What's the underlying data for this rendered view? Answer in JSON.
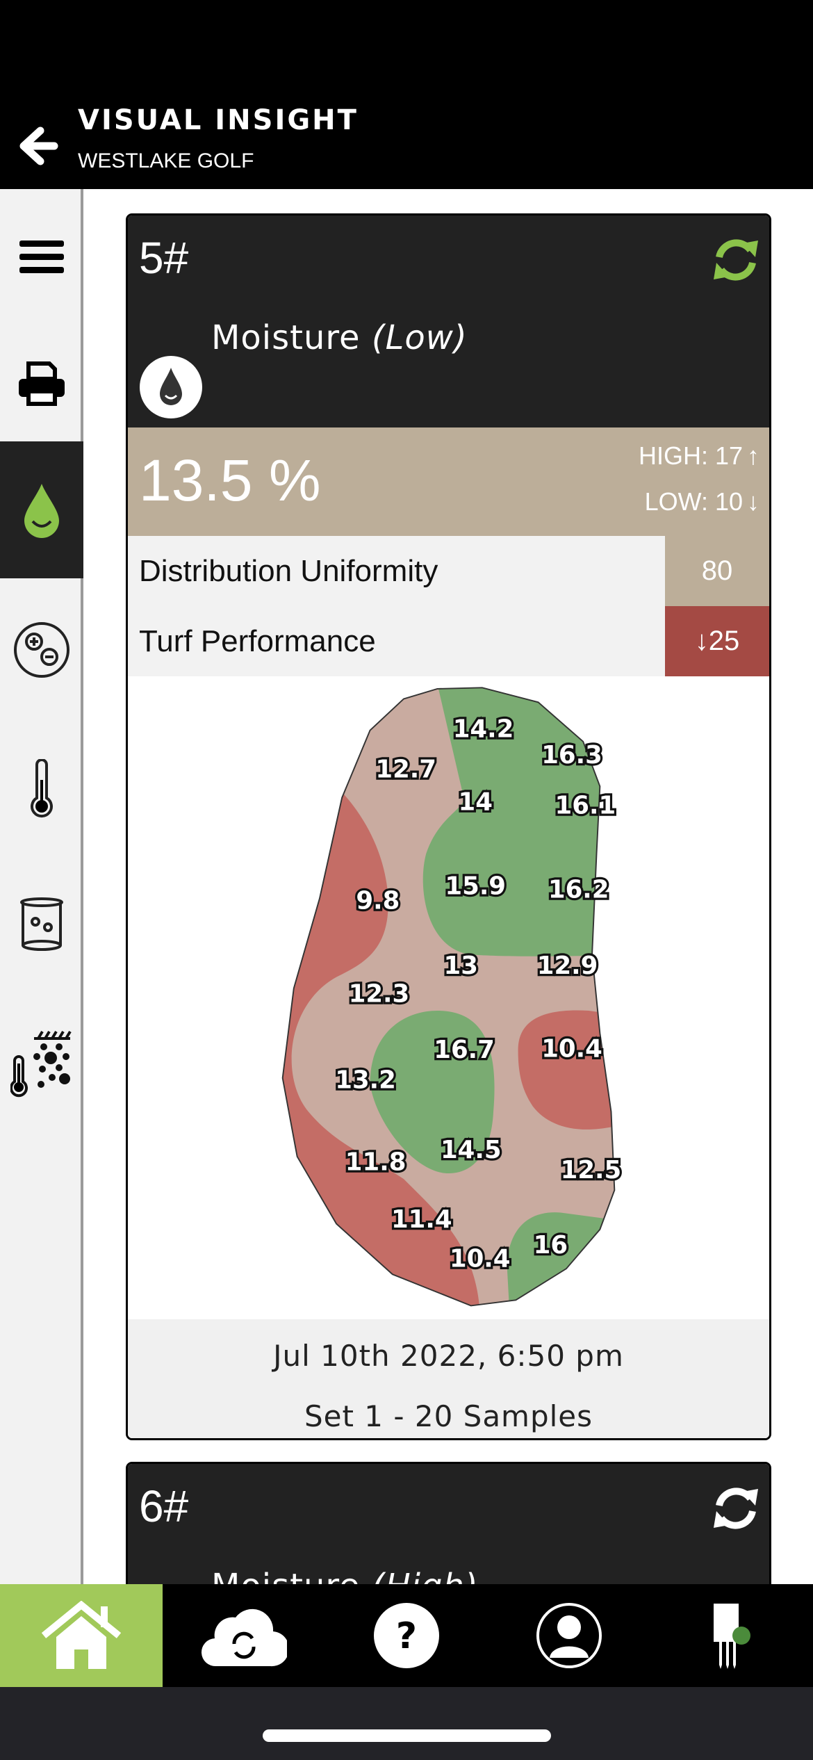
{
  "header": {
    "title": "VISUAL INSIGHT",
    "subtitle": "WESTLAKE GOLF"
  },
  "sidebar": {
    "items": [
      "menu-icon",
      "printer-icon",
      "moisture-drop-icon",
      "salinity-icon",
      "thermometer-icon",
      "beaker-icon",
      "soil-temperature-icon"
    ],
    "active": "moisture-drop-icon"
  },
  "card5": {
    "number": "5#",
    "metric": "Moisture",
    "level": "(Low)",
    "average": "13.5 %",
    "high": "HIGH: 17",
    "low": "LOW: 10",
    "rows": [
      {
        "label": "Distribution Uniformity",
        "value": "80",
        "color": "#bcae99"
      },
      {
        "label": "Turf Performance",
        "value": "25",
        "trend": "down",
        "color": "#a44a44"
      }
    ],
    "map_samples": [
      "14.2",
      "16.3",
      "12.7",
      "14",
      "16.1",
      "9.8",
      "15.9",
      "16.2",
      "13",
      "12.9",
      "12.3",
      "16.7",
      "10.4",
      "13.2",
      "14.5",
      "11.8",
      "12.5",
      "11.4",
      "10.4",
      "16"
    ],
    "date": "Jul 10th 2022, 6:50 pm",
    "set": "Set 1 - 20 Samples",
    "colors": {
      "high": "#7aab72",
      "mid": "#c9aba0",
      "low": "#c46d66",
      "refresh": "#8bc34a"
    }
  },
  "card6": {
    "number": "6#",
    "metric": "Moisture",
    "level": "(High)"
  },
  "nav": {
    "items": [
      "home-icon",
      "cloud-sync-icon",
      "help-icon",
      "profile-icon",
      "sensor-probe-icon"
    ],
    "active": "home-icon",
    "active_color": "#a1c95a"
  }
}
